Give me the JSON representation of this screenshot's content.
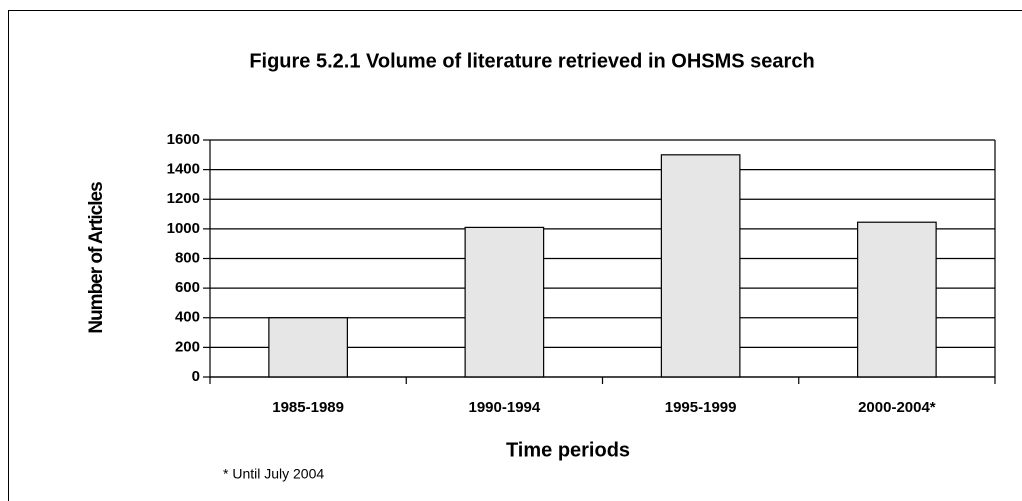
{
  "chart_data": {
    "type": "bar",
    "title": "Figure 5.2.1  Volume of literature retrieved in OHSMS search",
    "xlabel": "Time periods",
    "ylabel": "Number of Articles",
    "annotation": "* Until July 2004",
    "categories": [
      "1985-1989",
      "1990-1994",
      "1995-1999",
      "2000-2004*"
    ],
    "values": [
      400,
      1010,
      1500,
      1045
    ],
    "color": "#e6e6e6",
    "ylim": [
      0,
      1600
    ],
    "yticks": [
      0,
      200,
      400,
      600,
      800,
      1000,
      1200,
      1400,
      1600
    ],
    "grid": true
  }
}
